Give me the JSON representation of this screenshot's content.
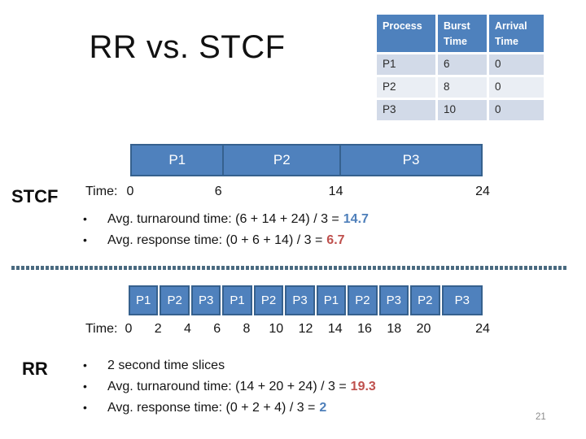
{
  "title": "RR vs. STCF",
  "page_number": "21",
  "process_table": {
    "headers": [
      "Process",
      "Burst Time",
      "Arrival Time"
    ],
    "rows": [
      [
        "P1",
        "6",
        "0"
      ],
      [
        "P2",
        "8",
        "0"
      ],
      [
        "P3",
        "10",
        "0"
      ]
    ]
  },
  "chart_data": [
    {
      "type": "gantt",
      "name": "STCF schedule",
      "time_label": "Time:",
      "xlim": [
        0,
        24
      ],
      "segments": [
        {
          "label": "P1",
          "start": 0,
          "end": 6
        },
        {
          "label": "P2",
          "start": 6,
          "end": 14
        },
        {
          "label": "P3",
          "start": 14,
          "end": 24
        }
      ],
      "ticks": [
        "0",
        "6",
        "14",
        "24"
      ]
    },
    {
      "type": "gantt",
      "name": "RR schedule",
      "time_label": "Time:",
      "xlim": [
        0,
        24
      ],
      "segments": [
        {
          "label": "P1",
          "start": 0,
          "end": 2
        },
        {
          "label": "P2",
          "start": 2,
          "end": 4
        },
        {
          "label": "P3",
          "start": 4,
          "end": 6
        },
        {
          "label": "P1",
          "start": 6,
          "end": 8
        },
        {
          "label": "P2",
          "start": 8,
          "end": 10
        },
        {
          "label": "P3",
          "start": 10,
          "end": 12
        },
        {
          "label": "P1",
          "start": 12,
          "end": 14
        },
        {
          "label": "P2",
          "start": 14,
          "end": 16
        },
        {
          "label": "P3",
          "start": 16,
          "end": 18
        },
        {
          "label": "P2",
          "start": 18,
          "end": 20
        },
        {
          "label": "P3",
          "start": 20,
          "end": 24
        }
      ],
      "ticks": [
        "0",
        "2",
        "4",
        "6",
        "8",
        "10",
        "12",
        "14",
        "16",
        "18",
        "20",
        "24"
      ]
    }
  ],
  "stcf_section": {
    "label": "STCF",
    "bullets": [
      {
        "text": "Avg. turnaround time: (6 + 14 + 24) / 3 =",
        "value": "14.7",
        "value_color": "#4E7FBA"
      },
      {
        "text": "Avg. response time: (0 + 6 + 14) / 3 =",
        "value": "6.7",
        "value_color": "#BF504D"
      }
    ]
  },
  "rr_section": {
    "label": "RR",
    "bullets": [
      {
        "text": "2 second time slices",
        "value": "",
        "value_color": ""
      },
      {
        "text": "Avg. turnaround time: (14 + 20 + 24) / 3 =",
        "value": "19.3",
        "value_color": "#BF504D"
      },
      {
        "text": "Avg. response time: (0 + 2 + 4) / 3 =",
        "value": "2",
        "value_color": "#4E7FBA"
      }
    ]
  },
  "colors": {
    "bar_fill": "#4F81BD",
    "bar_border": "#36618E",
    "table_header_bg": "#4E81BD",
    "table_row_odd": "#D2DAE8",
    "table_row_even": "#EAEEF4",
    "divider": "#4A6A80",
    "accent_blue": "#4E7FBA",
    "accent_red": "#BF504D"
  }
}
